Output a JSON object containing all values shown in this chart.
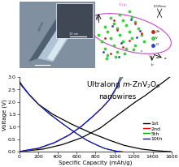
{
  "title_text1": "Ultralong ",
  "title_italic": "m",
  "title_text2": "-ZnV",
  "title_sub2": "2",
  "title_text3": "O",
  "title_sub6": "6",
  "title_line2": "nanowires",
  "xlabel": "Specific Capacity (mAh/g)",
  "ylabel": "Voltage (V)",
  "xlim": [
    0,
    1600
  ],
  "ylim": [
    0.0,
    3.0
  ],
  "xticks": [
    0,
    200,
    400,
    600,
    800,
    1000,
    1200,
    1400,
    1600
  ],
  "yticks": [
    0.0,
    0.5,
    1.0,
    1.5,
    2.0,
    2.5,
    3.0
  ],
  "legend_labels": [
    "1st",
    "2nd",
    "5th",
    "10th"
  ],
  "line_colors": [
    "black",
    "red",
    "#00aa00",
    "blue"
  ],
  "discharge_curves": {
    "1st": {
      "x": [
        0,
        30,
        100,
        200,
        350,
        550,
        750,
        950,
        1100,
        1280,
        1420,
        1530,
        1590
      ],
      "y": [
        2.82,
        2.65,
        2.3,
        1.9,
        1.5,
        1.1,
        0.75,
        0.45,
        0.25,
        0.1,
        0.04,
        0.01,
        0.0
      ]
    },
    "2nd": {
      "x": [
        0,
        30,
        100,
        200,
        320,
        460,
        590,
        710,
        820,
        900,
        970,
        1020,
        1060,
        1085
      ],
      "y": [
        2.78,
        2.62,
        2.3,
        1.9,
        1.5,
        1.1,
        0.75,
        0.45,
        0.25,
        0.12,
        0.06,
        0.02,
        0.005,
        0.0
      ]
    },
    "5th": {
      "x": [
        0,
        30,
        100,
        200,
        320,
        460,
        590,
        710,
        820,
        900,
        970,
        1015,
        1050,
        1072
      ],
      "y": [
        2.78,
        2.62,
        2.3,
        1.9,
        1.5,
        1.1,
        0.75,
        0.45,
        0.25,
        0.12,
        0.06,
        0.02,
        0.005,
        0.0
      ]
    },
    "10th": {
      "x": [
        0,
        30,
        100,
        200,
        320,
        460,
        590,
        710,
        820,
        900,
        965,
        1005,
        1038,
        1058
      ],
      "y": [
        2.78,
        2.62,
        2.3,
        1.9,
        1.5,
        1.1,
        0.75,
        0.45,
        0.25,
        0.12,
        0.06,
        0.02,
        0.005,
        0.0
      ]
    }
  },
  "charge_curves": {
    "1st": {
      "x": [
        0,
        80,
        250,
        450,
        650,
        850,
        1000,
        1120,
        1220,
        1320,
        1400,
        1470,
        1530,
        1580
      ],
      "y": [
        0.0,
        0.03,
        0.1,
        0.28,
        0.55,
        0.95,
        1.38,
        1.72,
        2.0,
        2.25,
        2.48,
        2.68,
        2.85,
        3.0
      ]
    },
    "2nd": {
      "x": [
        0,
        60,
        200,
        370,
        520,
        650,
        770,
        860,
        940,
        990,
        1035,
        1065,
        1085
      ],
      "y": [
        0.0,
        0.03,
        0.12,
        0.35,
        0.65,
        1.0,
        1.4,
        1.72,
        2.05,
        2.35,
        2.65,
        2.88,
        3.0
      ]
    },
    "5th": {
      "x": [
        0,
        60,
        200,
        370,
        520,
        650,
        770,
        860,
        940,
        990,
        1035,
        1062,
        1072
      ],
      "y": [
        0.0,
        0.04,
        0.13,
        0.36,
        0.66,
        1.01,
        1.41,
        1.73,
        2.06,
        2.36,
        2.66,
        2.89,
        3.0
      ]
    },
    "10th": {
      "x": [
        0,
        60,
        200,
        370,
        520,
        650,
        770,
        860,
        940,
        985,
        1028,
        1055,
        1058
      ],
      "y": [
        0.0,
        0.05,
        0.14,
        0.37,
        0.67,
        1.02,
        1.42,
        1.74,
        2.07,
        2.37,
        2.67,
        2.95,
        3.0
      ]
    }
  },
  "left_bg_color": "#8899aa",
  "left_bg_color2": "#6677aa",
  "inset_color": "#445566",
  "right_bg_color": "#f0f4ff",
  "crystal_green": "#44cc44",
  "crystal_red": "#cc2222",
  "crystal_blue": "#2244cc",
  "background_color": "#ffffff",
  "tick_fontsize": 4.5,
  "label_fontsize": 5,
  "legend_fontsize": 4.5,
  "title_fontsize": 6.5
}
